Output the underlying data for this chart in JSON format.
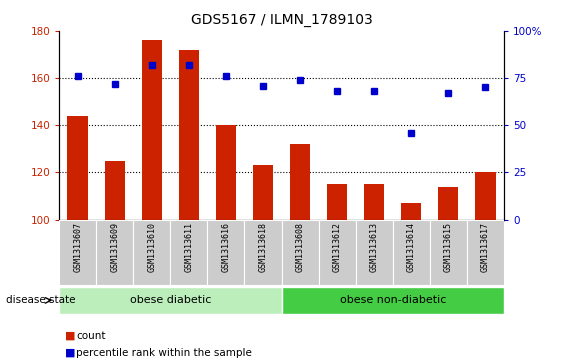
{
  "title": "GDS5167 / ILMN_1789103",
  "samples": [
    "GSM1313607",
    "GSM1313609",
    "GSM1313610",
    "GSM1313611",
    "GSM1313616",
    "GSM1313618",
    "GSM1313608",
    "GSM1313612",
    "GSM1313613",
    "GSM1313614",
    "GSM1313615",
    "GSM1313617"
  ],
  "counts": [
    144,
    125,
    176,
    172,
    140,
    123,
    132,
    115,
    115,
    107,
    114,
    120
  ],
  "percentile_ranks": [
    76,
    72,
    82,
    82,
    76,
    71,
    74,
    68,
    68,
    46,
    67,
    70
  ],
  "ylim_left": [
    100,
    180
  ],
  "ylim_right": [
    0,
    100
  ],
  "yticks_left": [
    100,
    120,
    140,
    160,
    180
  ],
  "yticks_right": [
    0,
    25,
    50,
    75,
    100
  ],
  "bar_color": "#cc2200",
  "dot_color": "#0000cc",
  "bg_color_diabetic": "#bbeebb",
  "bg_color_nondiabetic": "#44cc44",
  "label_diabetic": "obese diabetic",
  "label_nondiabetic": "obese non-diabetic",
  "disease_state_label": "disease state",
  "legend_count": "count",
  "legend_pct": "percentile rank within the sample",
  "n_diabetic": 6,
  "n_nondiabetic": 6,
  "dotted_grid": [
    120,
    140,
    160
  ],
  "bar_width": 0.55,
  "xtick_bg_color": "#cccccc"
}
